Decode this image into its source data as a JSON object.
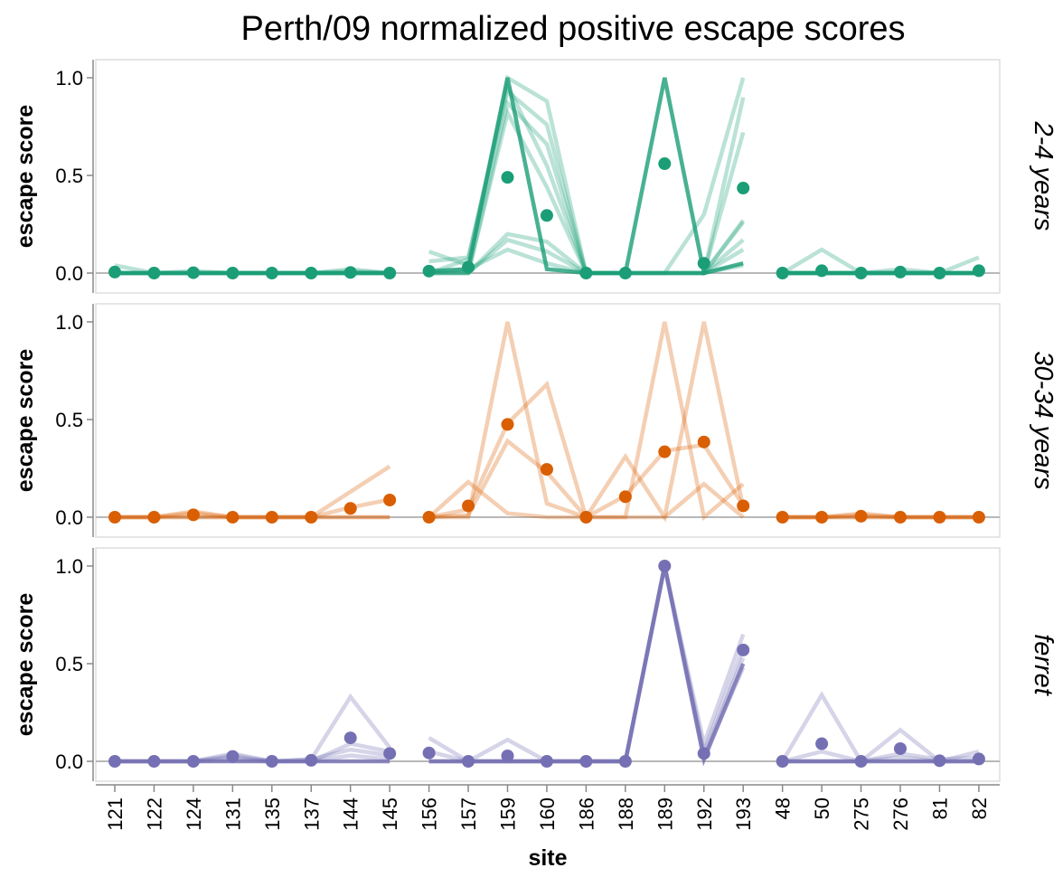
{
  "chart_data": {
    "type": "line",
    "title": "Perth/09 normalized positive escape scores",
    "xlabel": "site",
    "ylabel": "escape score",
    "ylim": [
      0,
      1.05
    ],
    "yticks": [
      "0.0",
      "0.5",
      "1.0"
    ],
    "categories": [
      "121",
      "122",
      "124",
      "131",
      "135",
      "137",
      "144",
      "145",
      "156",
      "157",
      "159",
      "160",
      "186",
      "188",
      "189",
      "192",
      "193",
      "48",
      "50",
      "275",
      "276",
      "81",
      "82"
    ],
    "segments": [
      [
        0,
        7
      ],
      [
        8,
        16
      ],
      [
        17,
        22
      ]
    ],
    "panels": [
      {
        "label": "2-4 years",
        "color": "#1b9e77",
        "mean": [
          0.005,
          0,
          0.002,
          0,
          0,
          0,
          0.003,
          0,
          0.01,
          0.03,
          0.49,
          0.295,
          0,
          0,
          0.56,
          0.05,
          0.435,
          0,
          0.012,
          0,
          0.005,
          0,
          0.012
        ],
        "individuals": [
          [
            0.04,
            0,
            0,
            0,
            0,
            0,
            0,
            0,
            0.11,
            0.04,
            1.0,
            0.88,
            0,
            0,
            0,
            0.3,
            1.0,
            0,
            0.12,
            0,
            0.02,
            0,
            0.08
          ],
          [
            0,
            0,
            0.01,
            0,
            0,
            0,
            0.01,
            0,
            0.06,
            0.08,
            0.93,
            0.76,
            0,
            0,
            0,
            0,
            0.9,
            0,
            0,
            0,
            0,
            0,
            0
          ],
          [
            0,
            0,
            0,
            0,
            0,
            0,
            0,
            0,
            0,
            0,
            0.87,
            0.66,
            0,
            0,
            0,
            0,
            0.72,
            0,
            0,
            0,
            0,
            0,
            0
          ],
          [
            0,
            0,
            0,
            0,
            0,
            0,
            0.02,
            0,
            0,
            0.07,
            0.96,
            0.55,
            0,
            0,
            0,
            0,
            0.27,
            0,
            0,
            0,
            0,
            0,
            0
          ],
          [
            0,
            0,
            0,
            0,
            0,
            0,
            0,
            0,
            0,
            0,
            0.82,
            0.44,
            0,
            0,
            0,
            0,
            0.26,
            0,
            0,
            0,
            0,
            0,
            0
          ],
          [
            0,
            0,
            0,
            0,
            0,
            0,
            0,
            0,
            0,
            0,
            0.2,
            0.16,
            0,
            0,
            0,
            0,
            0.17,
            0,
            0,
            0,
            0,
            0,
            0
          ],
          [
            0,
            0,
            0,
            0,
            0,
            0,
            0,
            0,
            0,
            0,
            0.17,
            0.11,
            0,
            0,
            0,
            0,
            0.12,
            0,
            0,
            0,
            0,
            0,
            0
          ],
          [
            0,
            0,
            0,
            0,
            0,
            0,
            0,
            0,
            0,
            0.02,
            0.12,
            0.05,
            0,
            0,
            0,
            0,
            0.04,
            0,
            0,
            0,
            0,
            0,
            0
          ]
        ],
        "highlight": [
          0,
          0,
          0,
          0,
          0,
          0,
          0,
          0,
          0.01,
          0.02,
          1.0,
          0.02,
          0,
          0,
          1.0,
          0,
          0.05,
          0,
          0,
          0,
          0,
          0,
          0
        ]
      },
      {
        "label": "30-34 years",
        "color": "#d95f02",
        "mean": [
          0,
          0,
          0.012,
          0,
          0,
          0,
          0.045,
          0.088,
          0,
          0.058,
          0.475,
          0.245,
          0,
          0.105,
          0.335,
          0.385,
          0.058,
          0,
          0,
          0.005,
          0,
          0,
          0
        ],
        "individuals": [
          [
            0,
            0,
            0.03,
            0,
            0,
            0,
            0.13,
            0.26,
            0,
            0.18,
            0.02,
            0,
            0,
            0,
            0,
            0.17,
            0,
            0,
            0,
            0.02,
            0,
            0,
            0
          ],
          [
            0,
            0,
            0,
            0,
            0,
            0,
            0,
            0,
            0,
            0,
            1.0,
            0.07,
            0,
            0,
            1.0,
            0,
            0.17,
            0,
            0,
            0,
            0,
            0,
            0
          ],
          [
            0,
            0,
            0,
            0,
            0,
            0,
            0,
            0,
            0,
            0.04,
            0.48,
            0.68,
            0,
            0.31,
            0,
            1.0,
            0.05,
            0,
            0,
            0,
            0,
            0,
            0
          ],
          [
            0,
            0,
            0.02,
            0,
            0,
            0,
            0.05,
            0.09,
            0,
            0.01,
            0.39,
            0.23,
            0,
            0.11,
            0.34,
            0.37,
            0.06,
            0,
            0,
            0.01,
            0,
            0,
            0
          ]
        ],
        "highlight": null
      },
      {
        "label": "ferret",
        "color": "#7570b3",
        "mean": [
          0,
          0,
          0,
          0.025,
          0,
          0.005,
          0.12,
          0.04,
          0.043,
          0,
          0.028,
          0,
          0,
          0,
          1.0,
          0.04,
          0.57,
          0,
          0.09,
          0,
          0.065,
          0.003,
          0.012
        ],
        "individuals": [
          [
            0,
            0,
            0,
            0.04,
            0,
            0.01,
            0.33,
            0.07,
            0.12,
            0,
            0.11,
            0,
            0,
            0,
            1.0,
            0.09,
            0.65,
            0,
            0.34,
            0,
            0.16,
            0,
            0.05
          ],
          [
            0,
            0,
            0,
            0.03,
            0,
            0,
            0.09,
            0.05,
            0.05,
            0,
            0,
            0,
            0,
            0,
            1.0,
            0.05,
            0.58,
            0,
            0.05,
            0,
            0.04,
            0.01,
            0.02
          ],
          [
            0,
            0,
            0,
            0.02,
            0,
            0.01,
            0.06,
            0.03,
            0,
            0,
            0,
            0,
            0,
            0,
            1.0,
            0.03,
            0.53,
            0,
            0,
            0,
            0.02,
            0,
            0
          ],
          [
            0,
            0,
            0,
            0.01,
            0,
            0,
            0.03,
            0.01,
            0,
            0,
            0,
            0,
            0,
            0,
            1.0,
            0.02,
            0.48,
            0,
            0,
            0,
            0,
            0,
            0
          ]
        ],
        "highlight": [
          0,
          0,
          0,
          0,
          0,
          0,
          0,
          0,
          0,
          0,
          0,
          0,
          0,
          0,
          1.0,
          0.01,
          0.5,
          0,
          0,
          0,
          0,
          0,
          0
        ]
      }
    ]
  }
}
